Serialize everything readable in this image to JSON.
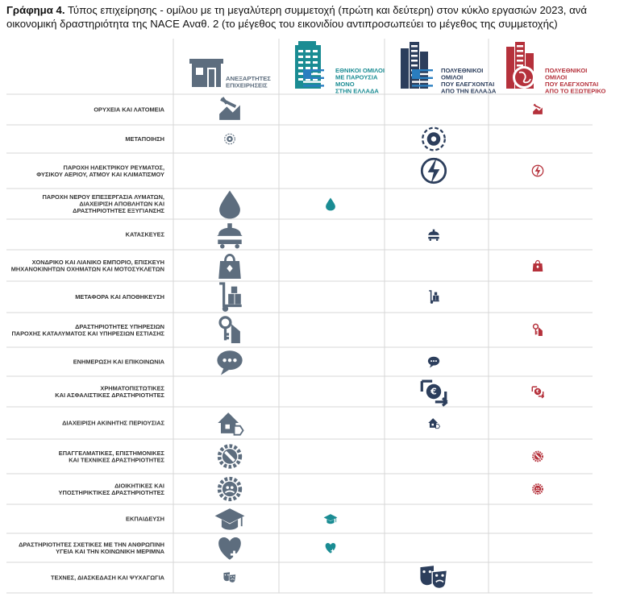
{
  "caption": {
    "label": "Γράφημα 4.",
    "text": "Τύπος επιχείρησης - ομίλου με τη μεγαλύτερη συμμετοχή (πρώτη και δεύτερη) στον κύκλο εργασιών 2023, ανά οικονομική δραστηριότητα της NACE Αναθ. 2 (το μέγεθος του εικονιδίου αντιπροσωπεύει το μέγεθος της συμμετοχής)"
  },
  "colors": {
    "grey": "#5d6d7e",
    "teal": "#1a8c93",
    "navy": "#2c3e5c",
    "red": "#b5313b",
    "grid": "#d7d7d7"
  },
  "columns": [
    {
      "key": "independent",
      "lines": [
        "ΑΝΕΞΑΡΤΗΤΕΣ",
        "ΕΠΙΧΕΙΡΗΣΕΙΣ"
      ],
      "color": "#5d6d7e",
      "icon": "shop-icon"
    },
    {
      "key": "national_gr",
      "lines": [
        "ΕΘΝΙΚΟΙ ΟΜΙΛΟΙ",
        "ΜΕ ΠΑΡΟΥΣΙΑ",
        "ΜΟΝΟ",
        "ΣΤΗΝ ΕΛΛΑΔΑ"
      ],
      "color": "#1a8c93",
      "icon": "building-greek-flag-icon"
    },
    {
      "key": "multinational_gr",
      "lines": [
        "ΠΟΛΥΕΘΝΙΚΟΙ",
        "ΟΜΙΛΟΙ",
        "ΠΟΥ ΕΛΕΓΧΟΝΤΑΙ",
        "ΑΠΟ ΤΗΝ ΕΛΛΑΔΑ"
      ],
      "color": "#2c3e5c",
      "icon": "skyline-greek-flag-icon"
    },
    {
      "key": "multinational_abroad",
      "lines": [
        "ΠΟΛΥΕΘΝΙΚΟΙ",
        "ΟΜΙΛΟΙ",
        "ΠΟΥ ΕΛΕΓΧΟΝΤΑΙ",
        "ΑΠΟ ΤΟ ΕΞΩΤΕΡΙΚΟ"
      ],
      "color": "#b5313b",
      "icon": "skyline-globe-icon"
    }
  ],
  "chart_data": {
    "type": "table",
    "size_scale": "1 = smaller icon (second), 2 = larger icon (first)",
    "rows": [
      {
        "lines": [
          "ΟΡΥΧΕΙΑ ΚΑΙ ΛΑΤΟΜΕΙΑ"
        ],
        "icon": "mining-icon",
        "cells": [
          2,
          0,
          0,
          1
        ]
      },
      {
        "lines": [
          "ΜΕΤΑΠΟΙΗΣΗ"
        ],
        "icon": "manufacturing-gear-icon",
        "cells": [
          1,
          0,
          2,
          0
        ]
      },
      {
        "lines": [
          "ΠΑΡΟΧΗ ΗΛΕΚΤΡΙΚΟΥ ΡΕΥΜΑΤΟΣ,",
          "ΦΥΣΙΚΟΥ ΑΕΡΙΟΥ, ΑΤΜΟΥ ΚΑΙ ΚΛΙΜΑΤΙΣΜΟΥ"
        ],
        "icon": "electricity-icon",
        "cells": [
          0,
          0,
          2,
          1
        ]
      },
      {
        "lines": [
          "ΠΑΡΟΧΗ ΝΕΡΟΥ ΕΠΕΞΕΡΓΑΣΙΑ ΛΥΜΑΤΩΝ,",
          "ΔΙΑΧΕΙΡΙΣΗ ΑΠΟΒΛΗΤΩΝ ΚΑΙ",
          "ΔΡΑΣΤΗΡΙΟΤΗΤΕΣ ΕΞΥΓΙΑΝΣΗΣ"
        ],
        "icon": "water-drop-icon",
        "cells": [
          2,
          1,
          0,
          0
        ]
      },
      {
        "lines": [
          "ΚΑΤΑΣΚΕΥΕΣ"
        ],
        "icon": "construction-helmet-icon",
        "cells": [
          2,
          0,
          1,
          0
        ]
      },
      {
        "lines": [
          "ΧΟΝΔΡΙΚΟ ΚΑΙ ΛΙΑΝΙΚΟ ΕΜΠΟΡΙΟ, ΕΠΙΣΚΕΥΗ",
          "ΜΗΧΑΝΟΚΙΝΗΤΩΝ ΟΧΗΜΑΤΩΝ ΚΑΙ ΜΟΤΟΣΥΚΛΕΤΩΝ"
        ],
        "icon": "shopping-bag-icon",
        "cells": [
          2,
          0,
          0,
          1
        ]
      },
      {
        "lines": [
          "ΜΕΤΑΦΟΡΑ ΚΑΙ ΑΠΟΘΗΚΕΥΣΗ"
        ],
        "icon": "hand-truck-icon",
        "cells": [
          2,
          0,
          1,
          0
        ]
      },
      {
        "lines": [
          "ΔΡΑΣΤΗΡΙΟΤΗΤΕΣ ΥΠΗΡΕΣΙΩΝ",
          "ΠΑΡΟΧΗΣ ΚΑΤΑΛΥΜΑΤΟΣ ΚΑΙ ΥΠΗΡΕΣΙΩΝ ΕΣΤΙΑΣΗΣ"
        ],
        "icon": "hotel-key-icon",
        "cells": [
          2,
          0,
          0,
          1
        ]
      },
      {
        "lines": [
          "ΕΝΗΜΕΡΩΣΗ ΚΑΙ ΕΠΙΚΟΙΝΩΝΙΑ"
        ],
        "icon": "chat-bubble-icon",
        "cells": [
          2,
          0,
          1,
          0
        ]
      },
      {
        "lines": [
          "ΧΡΗΜΑΤΟΠΙΣΤΩΤΙΚΕΣ",
          "ΚΑΙ ΑΣΦΑΛΙΣΤΙΚΕΣ ΔΡΑΣΤΗΡΙΟΤΗΤΕΣ"
        ],
        "icon": "euro-exchange-icon",
        "cells": [
          0,
          0,
          2,
          1
        ]
      },
      {
        "lines": [
          "ΔΙΑΧΕΙΡΙΣΗ ΑΚΙΝΗΤΗΣ ΠΕΡΙΟΥΣΙΑΣ"
        ],
        "icon": "house-tag-icon",
        "cells": [
          2,
          0,
          1,
          0
        ]
      },
      {
        "lines": [
          "ΕΠΑΓΓΕΛΜΑΤΙΚΕΣ, ΕΠΙΣΤΗΜΟΝΙΚΕΣ",
          "ΚΑΙ ΤΕΧΝΙΚΕΣ ΔΡΑΣΤΗΡΙΟΤΗΤΕΣ"
        ],
        "icon": "gear-wrench-icon",
        "cells": [
          2,
          0,
          0,
          1
        ]
      },
      {
        "lines": [
          "ΔΙΟΙΚΗΤΙΚΕΣ ΚΑΙ",
          "ΥΠΟΣΤΗΡΙΚΤΙΚΕΣ ΔΡΑΣΤΗΡΙΟΤΗΤΕΣ"
        ],
        "icon": "gear-people-icon",
        "cells": [
          2,
          0,
          0,
          1
        ]
      },
      {
        "lines": [
          "ΕΚΠΑΙΔΕΥΣΗ"
        ],
        "icon": "graduation-cap-icon",
        "cells": [
          2,
          1,
          0,
          0
        ]
      },
      {
        "lines": [
          "ΔΡΑΣΤΗΡΙΟΤΗΤΕΣ ΣΧΕΤΙΚΕΣ ΜΕ ΤΗΝ ΑΝΘΡΩΠΙΝΗ",
          "ΥΓΕΙΑ ΚΑΙ ΤΗΝ ΚΟΙΝΩΝΙΚΗ ΜΕΡΙΜΝΑ"
        ],
        "icon": "heart-cross-icon",
        "cells": [
          2,
          1,
          0,
          0
        ]
      },
      {
        "lines": [
          "ΤΕΧΝΕΣ, ΔΙΑΣΚΕΔΑΣΗ ΚΑΙ ΨΥΧΑΓΩΓΙΑ"
        ],
        "icon": "theater-masks-icon",
        "cells": [
          1,
          0,
          2,
          0
        ]
      }
    ]
  }
}
